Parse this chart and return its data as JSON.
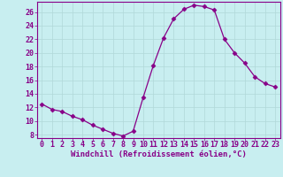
{
  "x": [
    0,
    1,
    2,
    3,
    4,
    5,
    6,
    7,
    8,
    9,
    10,
    11,
    12,
    13,
    14,
    15,
    16,
    17,
    18,
    19,
    20,
    21,
    22,
    23
  ],
  "y": [
    12.5,
    11.7,
    11.4,
    10.7,
    10.2,
    9.4,
    8.8,
    8.2,
    7.8,
    8.5,
    13.5,
    18.2,
    22.2,
    25.0,
    26.4,
    27.0,
    26.8,
    26.3,
    22.0,
    20.0,
    18.5,
    16.5,
    15.5,
    15.0
  ],
  "line_color": "#880088",
  "marker": "D",
  "marker_size": 2.5,
  "bg_color": "#c8eef0",
  "grid_color": "#b0d8d8",
  "xlabel": "Windchill (Refroidissement éolien,°C)",
  "xlabel_fontsize": 6.5,
  "tick_fontsize": 6.0,
  "ylim": [
    7.5,
    27.5
  ],
  "yticks": [
    8,
    10,
    12,
    14,
    16,
    18,
    20,
    22,
    24,
    26
  ],
  "xlim": [
    -0.5,
    23.5
  ],
  "xticks": [
    0,
    1,
    2,
    3,
    4,
    5,
    6,
    7,
    8,
    9,
    10,
    11,
    12,
    13,
    14,
    15,
    16,
    17,
    18,
    19,
    20,
    21,
    22,
    23
  ]
}
